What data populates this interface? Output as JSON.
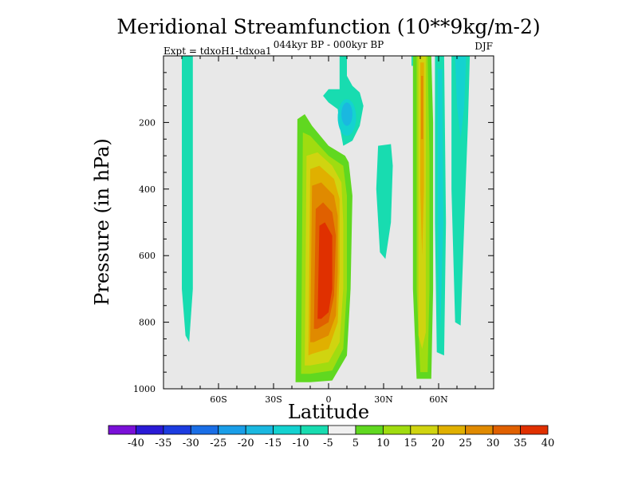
{
  "chart_data": {
    "type": "heatmap",
    "title": "Meridional Streamfunction (10**9kg/m-2)",
    "subtitle": "044kyr BP - 000kyr BP",
    "left_label": "Expt = tdxoH1-tdxoa1",
    "right_label": "DJF",
    "xlabel": "Latitude",
    "ylabel": "Pressure (in hPa)",
    "xlim": [
      -90,
      90
    ],
    "ylim": [
      1000,
      0
    ],
    "x_ticks": [
      {
        "value": -60,
        "label": "60S"
      },
      {
        "value": -30,
        "label": "30S"
      },
      {
        "value": 0,
        "label": "0"
      },
      {
        "value": 30,
        "label": "30N"
      },
      {
        "value": 60,
        "label": "60N"
      }
    ],
    "y_ticks": [
      {
        "value": 200,
        "label": "200"
      },
      {
        "value": 400,
        "label": "400"
      },
      {
        "value": 600,
        "label": "600"
      },
      {
        "value": 800,
        "label": "800"
      },
      {
        "value": 1000,
        "label": "1000"
      }
    ],
    "colorbar": {
      "levels": [
        -40,
        -35,
        -30,
        -25,
        -20,
        -15,
        -10,
        -5,
        5,
        10,
        15,
        20,
        25,
        30,
        35,
        40
      ],
      "labels": [
        "-40",
        "-35",
        "-30",
        "-25",
        "-20",
        "-15",
        "-10",
        "-5",
        "5",
        "10",
        "15",
        "20",
        "25",
        "30",
        "35",
        "40"
      ],
      "colors": [
        "#7a10d8",
        "#2a1ad6",
        "#1c3ce0",
        "#1a6ee6",
        "#1a9ee8",
        "#1ab8e0",
        "#14d2d0",
        "#18dcb0",
        "#f0f0f0",
        "#60d820",
        "#a0dc10",
        "#d0d410",
        "#e0b000",
        "#e08a00",
        "#e06000",
        "#e03000"
      ]
    },
    "features": [
      {
        "name": "sh-polar-negative",
        "level_max": -5,
        "lat_center": -77,
        "top_hPa": 0,
        "bottom_hPa": 860
      },
      {
        "name": "hadley-positive-cell",
        "level_max": 40,
        "lat_center": 0,
        "top_hPa": 180,
        "bottom_hPa": 970
      },
      {
        "name": "upper-negative-cell",
        "level_min": -15,
        "lat_center": 7,
        "top_hPa": 0,
        "bottom_hPa": 260
      },
      {
        "name": "subtropical-negative",
        "level_max": -5,
        "lat_center": 33,
        "top_hPa": 280,
        "bottom_hPa": 610
      },
      {
        "name": "ferrel-positive-band",
        "level_max": 25,
        "lat_center": 52,
        "top_hPa": 0,
        "bottom_hPa": 970
      },
      {
        "name": "midlat-negative-band",
        "level_max": -10,
        "lat_center": 62,
        "top_hPa": 0,
        "bottom_hPa": 900
      },
      {
        "name": "nh-polar-negative",
        "level_max": -5,
        "lat_center": 72,
        "top_hPa": 0,
        "bottom_hPa": 810
      }
    ]
  }
}
